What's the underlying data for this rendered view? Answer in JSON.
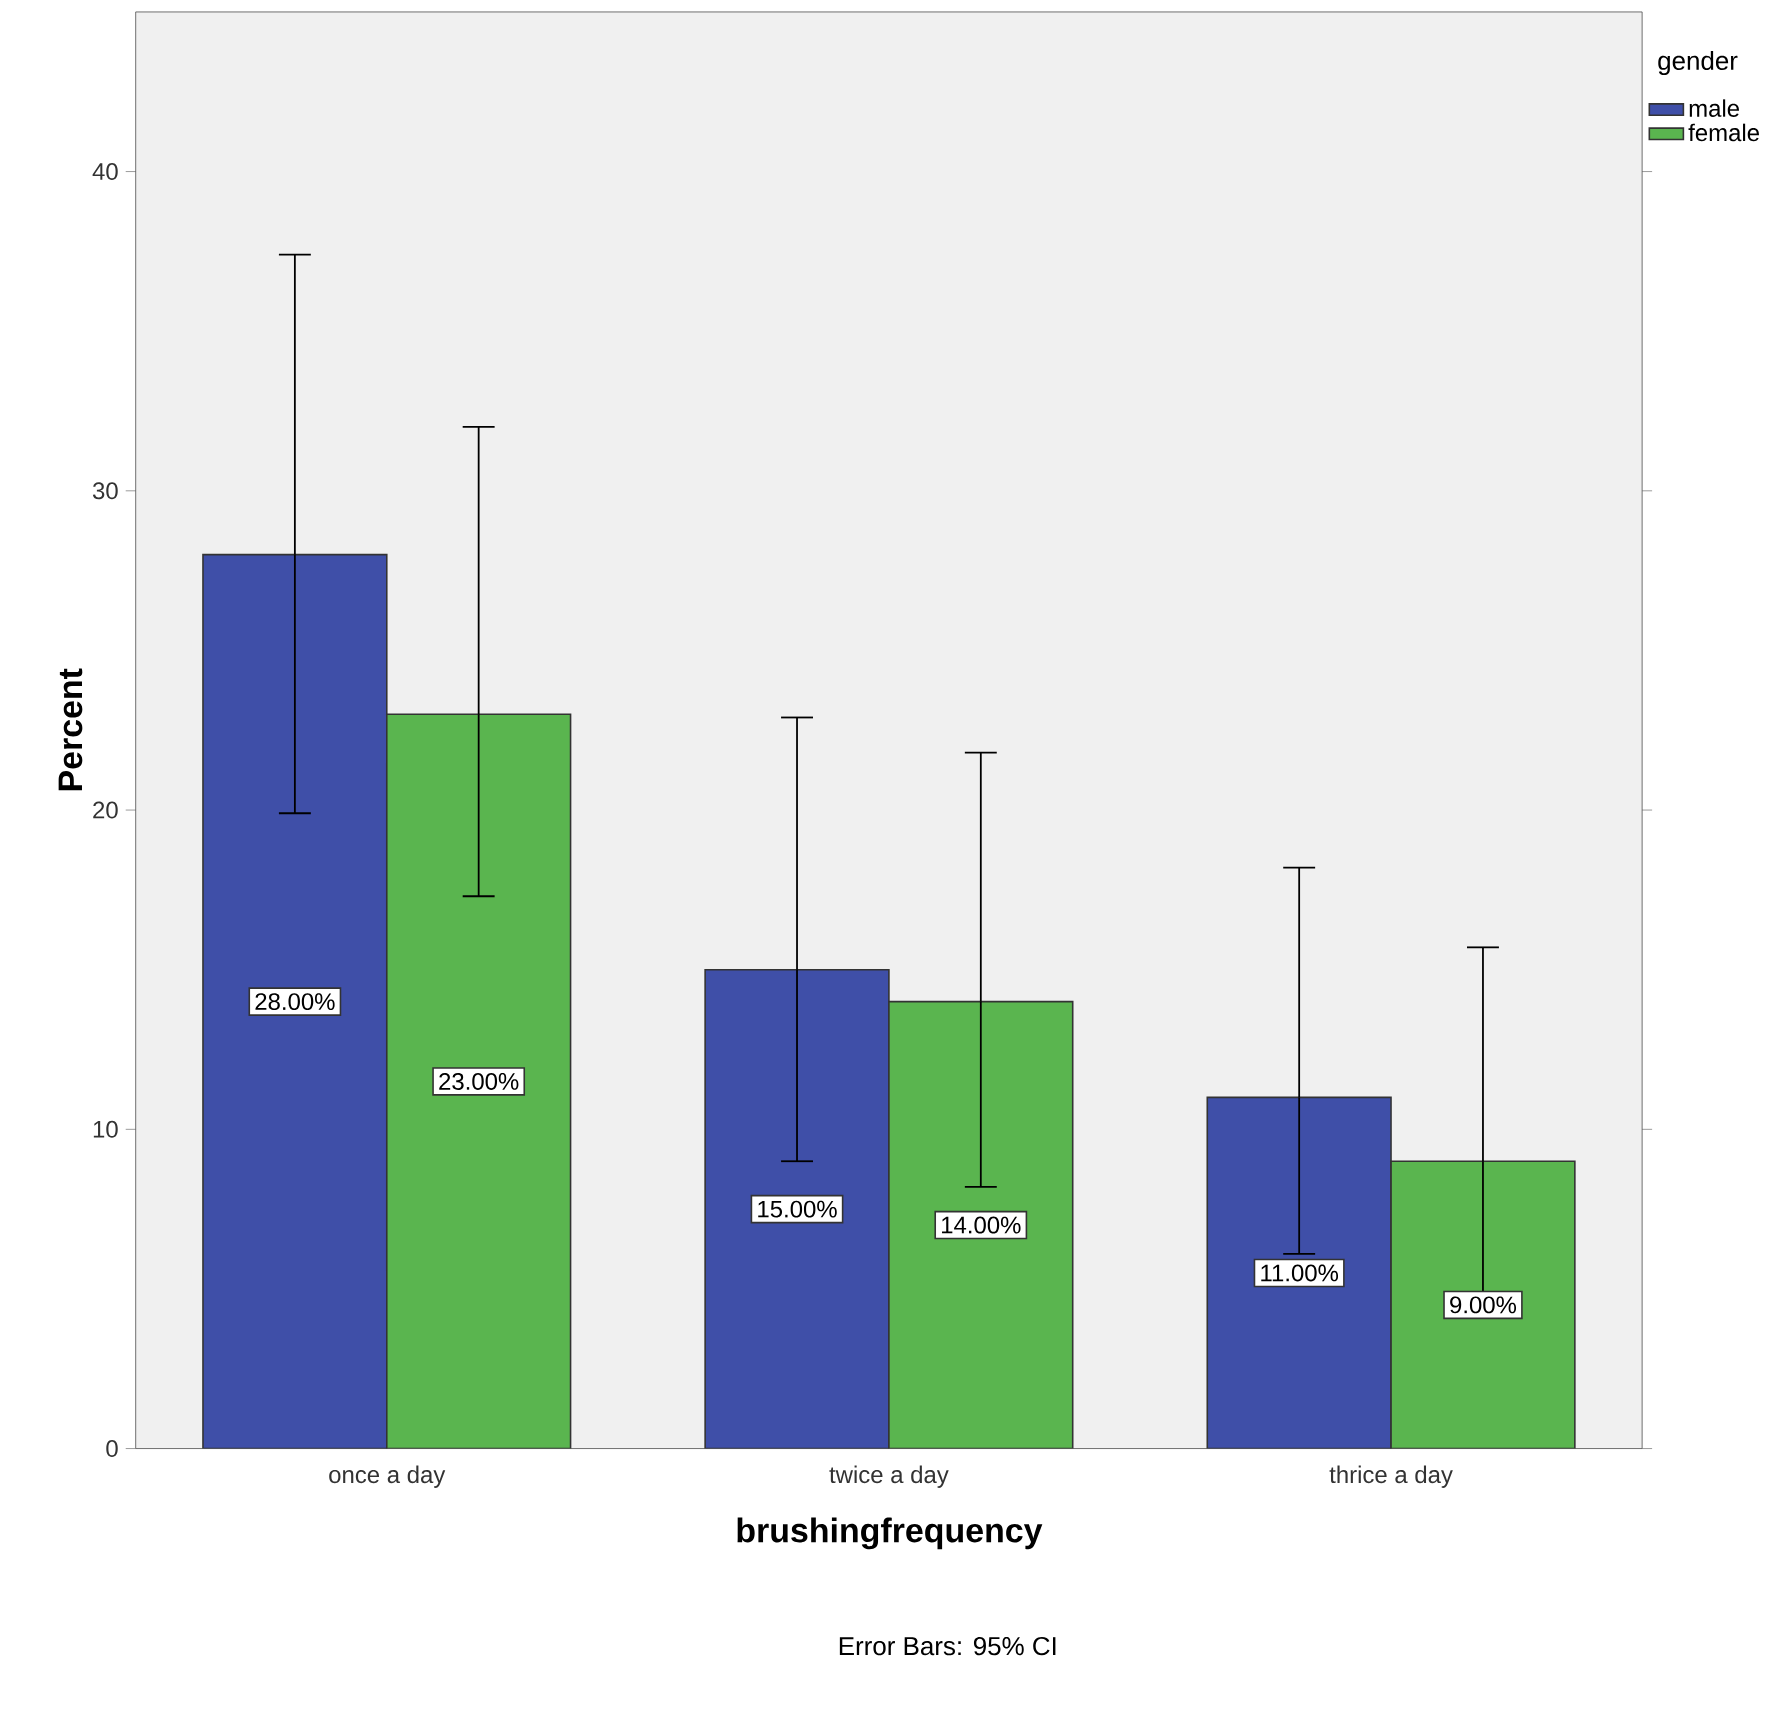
{
  "chart_data": {
    "type": "bar",
    "xlabel": "brushingfrequency",
    "ylabel": "Percent",
    "legend_title": "gender",
    "categories": [
      "once a day",
      "twice a day",
      "thrice a day"
    ],
    "series": [
      {
        "name": "male",
        "color": "#3f4fa8",
        "values": [
          28,
          15,
          11
        ],
        "errors": [
          [
            19.9,
            37.4
          ],
          [
            9.0,
            22.9
          ],
          [
            6.1,
            18.2
          ]
        ],
        "value_labels": [
          "28.00%",
          "15.00%",
          "11.00%"
        ]
      },
      {
        "name": "female",
        "color": "#5ab54f",
        "values": [
          23,
          14,
          9
        ],
        "errors": [
          [
            17.3,
            32.0
          ],
          [
            8.2,
            21.8
          ],
          [
            4.6,
            15.7
          ]
        ],
        "value_labels": [
          "23.00%",
          "14.00%",
          "9.00%"
        ]
      }
    ],
    "ylim": [
      0,
      45
    ],
    "yticks": [
      0,
      10,
      20,
      30,
      40
    ],
    "grid": false,
    "legend": "right",
    "annotations": [
      "Error Bars: 95% CI"
    ]
  }
}
